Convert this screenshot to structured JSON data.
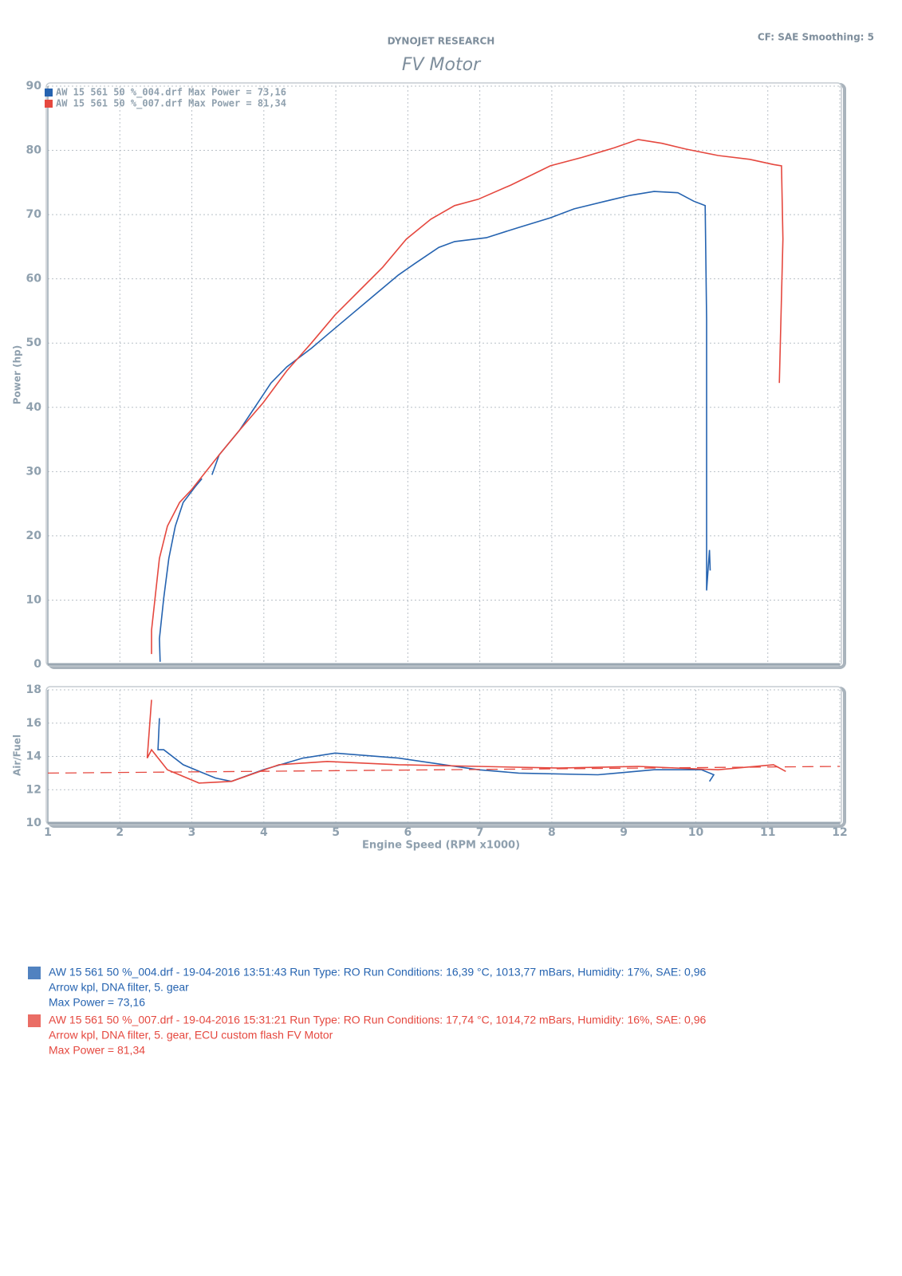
{
  "header": {
    "company": "DYNOJET RESEARCH",
    "settings": "CF: SAE  Smoothing: 5"
  },
  "chart_data": [
    {
      "type": "line",
      "title": "FV Motor",
      "y_label": "Power (hp)",
      "xlim": [
        1,
        12
      ],
      "ylim": [
        0,
        90
      ],
      "yticks": [
        0,
        10,
        20,
        30,
        40,
        50,
        60,
        70,
        80,
        90
      ],
      "grid": true,
      "legend": "upper left",
      "series": [
        {
          "name": "AW 15 561 50 %_004.drf Max Power = 73,16",
          "color": "#2563b0",
          "x": [
            2.56,
            2.55,
            2.61,
            2.68,
            2.77,
            2.88,
            3.05,
            3.14,
            null,
            3.28,
            3.38,
            3.66,
            3.88,
            4.1,
            4.32,
            4.66,
            4.88,
            5.21,
            5.54,
            5.87,
            6.1,
            6.43,
            6.65,
            7.09,
            7.54,
            7.98,
            8.31,
            8.75,
            9.09,
            9.42,
            9.75,
            9.97,
            10.13,
            10.15,
            10.15,
            10.19,
            10.2
          ],
          "values": [
            0.4,
            4,
            10.3,
            16.5,
            21.5,
            25.2,
            27.7,
            28.9,
            null,
            29.5,
            32.6,
            36.4,
            40.1,
            43.8,
            46.3,
            49.2,
            51.3,
            54.4,
            57.5,
            60.6,
            62.4,
            64.9,
            65.8,
            66.4,
            68,
            69.5,
            70.9,
            72.1,
            73,
            73.6,
            73.4,
            72.1,
            71.4,
            53.7,
            11.5,
            17.8,
            14.6
          ]
        },
        {
          "name": "AW 15 561 50 %_007.drf Max Power = 81,34",
          "color": "#e5483f",
          "x": [
            2.44,
            2.44,
            2.55,
            2.66,
            2.83,
            2.99,
            3.16,
            3.38,
            3.66,
            3.99,
            4.32,
            4.66,
            4.99,
            5.32,
            5.65,
            5.98,
            6.32,
            6.65,
            6.98,
            7.43,
            7.98,
            8.42,
            8.87,
            9.2,
            9.53,
            9.86,
            10.31,
            10.75,
            11.08,
            11.19,
            11.21,
            11.16
          ],
          "values": [
            1.6,
            5.3,
            16.5,
            21.5,
            25.2,
            27.1,
            29.5,
            32.6,
            36.4,
            40.7,
            45.7,
            50,
            54.4,
            58.1,
            61.8,
            66.2,
            69.3,
            71.4,
            72.4,
            74.6,
            77.6,
            78.9,
            80.4,
            81.7,
            81.1,
            80.2,
            79.2,
            78.6,
            77.8,
            77.6,
            66.2,
            43.8
          ]
        }
      ]
    },
    {
      "type": "line",
      "y_label": "Air/Fuel",
      "x_label": "Engine Speed (RPM x1000)",
      "xlim": [
        1,
        12
      ],
      "xticks": [
        1,
        2,
        3,
        4,
        5,
        6,
        7,
        8,
        9,
        10,
        11,
        12
      ],
      "ylim": [
        10,
        18
      ],
      "yticks": [
        10,
        12,
        14,
        16,
        18
      ],
      "grid": true,
      "series": [
        {
          "color": "#2563b0",
          "x": [
            2.55,
            2.53,
            2.61,
            2.88,
            3.16,
            3.33,
            3.55,
            3.99,
            4.54,
            4.99,
            5.87,
            6.98,
            7.54,
            8.64,
            9.42,
            10.08,
            10.25,
            10.19
          ],
          "values": [
            16.3,
            14.4,
            14.4,
            13.5,
            13.0,
            12.7,
            12.5,
            13.2,
            13.9,
            14.2,
            13.9,
            13.2,
            13.0,
            12.9,
            13.2,
            13.2,
            12.9,
            12.5
          ]
        },
        {
          "color": "#e5483f",
          "x": [
            2.44,
            2.38,
            2.44,
            2.66,
            3.1,
            3.55,
            4.21,
            4.88,
            5.87,
            6.98,
            8.09,
            9.2,
            10.31,
            11.08,
            11.25
          ],
          "values": [
            17.4,
            13.9,
            14.4,
            13.2,
            12.4,
            12.5,
            13.5,
            13.7,
            13.5,
            13.4,
            13.3,
            13.4,
            13.2,
            13.5,
            13.1
          ]
        },
        {
          "color": "#e5483f",
          "dash": "dashed",
          "x": [
            1,
            12
          ],
          "values": [
            13.0,
            13.4
          ]
        }
      ]
    }
  ],
  "runs": [
    {
      "color": "#2563b0",
      "lines": [
        "AW 15 561 50 %_004.drf - 19-04-2016 13:51:43  Run Type: RO  Run Conditions: 16,39 °C, 1013,77 mBars,  Humidity:  17%, SAE: 0,96",
        "Arrow kpl, DNA filter, 5. gear",
        "Max Power = 73,16"
      ]
    },
    {
      "color": "#e5483f",
      "lines": [
        "AW 15 561 50 %_007.drf - 19-04-2016 15:31:21  Run Type: RO  Run Conditions: 17,74 °C, 1014,72 mBars,  Humidity:  16%, SAE: 0,96",
        "Arrow kpl, DNA filter, 5. gear, ECU custom flash FV Motor",
        "Max Power = 81,34"
      ]
    }
  ]
}
